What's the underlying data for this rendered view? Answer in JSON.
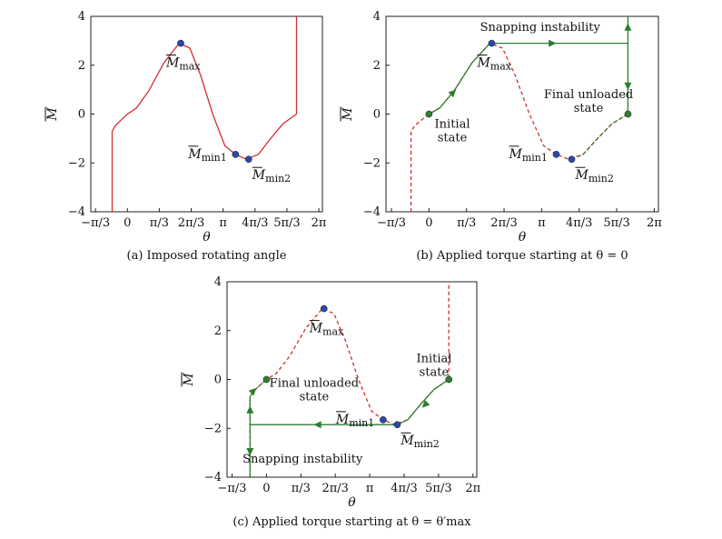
{
  "chart_data": [
    {
      "id": "a",
      "type": "line",
      "caption": "(a) Imposed rotating angle",
      "xlabel": "θ",
      "ylabel": "M",
      "xlim": [
        -1.2,
        6.4
      ],
      "ylim": [
        -4,
        4
      ],
      "xticks": [
        {
          "value": -1.0472,
          "label": "−π/3"
        },
        {
          "value": 0,
          "label": "0"
        },
        {
          "value": 1.0472,
          "label": "π/3"
        },
        {
          "value": 2.0944,
          "label": "2π/3"
        },
        {
          "value": 3.1416,
          "label": "π"
        },
        {
          "value": 4.1888,
          "label": "4π/3"
        },
        {
          "value": 5.236,
          "label": "5π/3"
        },
        {
          "value": 6.2832,
          "label": "2π"
        }
      ],
      "yticks": [
        {
          "value": -4,
          "label": "−4"
        },
        {
          "value": -2,
          "label": "−2"
        },
        {
          "value": 0,
          "label": "0"
        },
        {
          "value": 2,
          "label": "2"
        },
        {
          "value": 4,
          "label": "4"
        }
      ],
      "series": [
        {
          "style": "solid-red",
          "x": [
            -0.5,
            -0.5,
            -0.38,
            -0.15,
            0,
            0.3,
            0.7,
            1.2,
            1.7,
            2.05,
            2.4,
            2.8,
            3.2,
            3.55,
            3.9,
            4.3,
            4.7,
            5.1,
            5.55,
            5.55,
            5.55
          ],
          "y": [
            -4,
            -0.7,
            -0.45,
            -0.18,
            0,
            0.25,
            0.95,
            2.1,
            2.9,
            2.7,
            1.6,
            0.0,
            -1.3,
            -1.65,
            -1.85,
            -1.65,
            -1.0,
            -0.4,
            0,
            2.5,
            4
          ]
        }
      ],
      "points": [
        {
          "x": 1.75,
          "y": 2.9,
          "color": "#2b48a8",
          "label": "M",
          "sub": "max",
          "label_anchor": "below"
        },
        {
          "x": 3.55,
          "y": -1.65,
          "color": "#2b48a8",
          "label": "M",
          "sub": "min1",
          "label_anchor": "left"
        },
        {
          "x": 3.98,
          "y": -1.85,
          "color": "#2b48a8",
          "label": "M",
          "sub": "min2",
          "label_anchor": "below-right"
        }
      ],
      "arrows": [],
      "texts": []
    },
    {
      "id": "b",
      "type": "line",
      "caption": "(b) Applied torque starting at θ = 0",
      "xlabel": "θ",
      "ylabel": "M",
      "xlim": [
        -1.2,
        6.4
      ],
      "ylim": [
        -4,
        4
      ],
      "xticks": [
        {
          "value": -1.0472,
          "label": "−π/3"
        },
        {
          "value": 0,
          "label": "0"
        },
        {
          "value": 1.0472,
          "label": "π/3"
        },
        {
          "value": 2.0944,
          "label": "2π/3"
        },
        {
          "value": 3.1416,
          "label": "π"
        },
        {
          "value": 4.1888,
          "label": "4π/3"
        },
        {
          "value": 5.236,
          "label": "5π/3"
        },
        {
          "value": 6.2832,
          "label": "2π"
        }
      ],
      "yticks": [
        {
          "value": -4,
          "label": "−4"
        },
        {
          "value": -2,
          "label": "−2"
        },
        {
          "value": 0,
          "label": "0"
        },
        {
          "value": 2,
          "label": "2"
        },
        {
          "value": 4,
          "label": "4"
        }
      ],
      "series": [
        {
          "style": "dashed-red",
          "x": [
            -0.5,
            -0.5,
            -0.38,
            -0.15,
            0,
            0.3,
            0.7,
            1.2,
            1.7,
            2.05,
            2.4,
            2.8,
            3.2,
            3.55,
            3.9,
            4.3,
            4.7,
            5.1,
            5.55
          ],
          "y": [
            -4,
            -0.7,
            -0.45,
            -0.18,
            0,
            0.25,
            0.95,
            2.1,
            2.9,
            2.7,
            1.6,
            0.0,
            -1.3,
            -1.65,
            -1.85,
            -1.65,
            -1.0,
            -0.4,
            0
          ]
        },
        {
          "style": "solid-green",
          "x": [
            0,
            0.3,
            0.7,
            1.2,
            1.7
          ],
          "y": [
            0,
            0.25,
            0.95,
            2.1,
            2.9
          ]
        },
        {
          "style": "solid-green",
          "x": [
            1.7,
            5.55
          ],
          "y": [
            2.9,
            2.9
          ]
        },
        {
          "style": "solid-green",
          "x": [
            5.55,
            5.55
          ],
          "y": [
            4,
            0
          ]
        },
        {
          "style": "dashed-green",
          "x": [
            3.98,
            4.3,
            4.7,
            5.1,
            5.55
          ],
          "y": [
            -1.85,
            -1.65,
            -1.0,
            -0.4,
            0
          ]
        }
      ],
      "points": [
        {
          "x": 0,
          "y": 0,
          "color": "#2e7d32"
        },
        {
          "x": 1.75,
          "y": 2.9,
          "color": "#2b48a8",
          "label": "M",
          "sub": "max",
          "label_anchor": "below"
        },
        {
          "x": 3.55,
          "y": -1.65,
          "color": "#2b48a8",
          "label": "M",
          "sub": "min1",
          "label_anchor": "left"
        },
        {
          "x": 3.98,
          "y": -1.85,
          "color": "#2b48a8",
          "label": "M",
          "sub": "min2",
          "label_anchor": "below-right"
        },
        {
          "x": 5.55,
          "y": 0,
          "color": "#2e7d32"
        }
      ],
      "arrows": [
        {
          "x": 0.65,
          "y": 0.85,
          "dir": "up-right"
        },
        {
          "x": 3.4,
          "y": 2.9,
          "dir": "right"
        },
        {
          "x": 5.55,
          "y": 3.5,
          "dir": "up"
        },
        {
          "x": 5.55,
          "y": 1.2,
          "dir": "down"
        }
      ],
      "texts": [
        {
          "x": 3.1,
          "y": 3.4,
          "lines": [
            "Snapping instability"
          ]
        },
        {
          "x": 0.65,
          "y": -0.55,
          "lines": [
            "Initial",
            "state"
          ]
        },
        {
          "x": 4.45,
          "y": 0.65,
          "lines": [
            "Final unloaded",
            "state"
          ]
        }
      ]
    },
    {
      "id": "c",
      "type": "line",
      "caption": "(c) Applied torque starting at θ = θ′max",
      "xlabel": "θ",
      "ylabel": "M",
      "xlim": [
        -1.2,
        6.4
      ],
      "ylim": [
        -4,
        4
      ],
      "xticks": [
        {
          "value": -1.0472,
          "label": "−π/3"
        },
        {
          "value": 0,
          "label": "0"
        },
        {
          "value": 1.0472,
          "label": "π/3"
        },
        {
          "value": 2.0944,
          "label": "2π/3"
        },
        {
          "value": 3.1416,
          "label": "π"
        },
        {
          "value": 4.1888,
          "label": "4π/3"
        },
        {
          "value": 5.236,
          "label": "5π/3"
        },
        {
          "value": 6.2832,
          "label": "2π"
        }
      ],
      "yticks": [
        {
          "value": -4,
          "label": "−4"
        },
        {
          "value": -2,
          "label": "−2"
        },
        {
          "value": 0,
          "label": "0"
        },
        {
          "value": 2,
          "label": "2"
        },
        {
          "value": 4,
          "label": "4"
        }
      ],
      "series": [
        {
          "style": "dashed-red",
          "x": [
            -0.5,
            -0.5,
            -0.38,
            -0.15,
            0,
            0.3,
            0.7,
            1.2,
            1.7,
            2.05,
            2.4,
            2.8,
            3.2,
            3.55,
            3.9,
            4.3,
            4.7,
            5.1,
            5.55,
            5.55,
            5.55
          ],
          "y": [
            -4,
            -0.7,
            -0.45,
            -0.18,
            0,
            0.25,
            0.95,
            2.1,
            2.9,
            2.7,
            1.6,
            0.0,
            -1.3,
            -1.65,
            -1.85,
            -1.65,
            -1.0,
            -0.4,
            0,
            2.5,
            4
          ]
        },
        {
          "style": "solid-green",
          "x": [
            5.55,
            5.1,
            4.7,
            4.3,
            3.98
          ],
          "y": [
            0,
            -0.4,
            -1.0,
            -1.65,
            -1.85
          ]
        },
        {
          "style": "solid-green",
          "x": [
            3.98,
            -0.5
          ],
          "y": [
            -1.85,
            -1.85
          ]
        },
        {
          "style": "solid-green",
          "x": [
            -0.5,
            -0.5
          ],
          "y": [
            -4,
            -0.7
          ]
        },
        {
          "style": "dashed-green",
          "x": [
            -0.5,
            -0.38,
            -0.15,
            0
          ],
          "y": [
            -0.7,
            -0.45,
            -0.18,
            0
          ]
        }
      ],
      "points": [
        {
          "x": 0,
          "y": 0,
          "color": "#2e7d32"
        },
        {
          "x": 1.75,
          "y": 2.9,
          "color": "#2b48a8",
          "label": "M",
          "sub": "max",
          "label_anchor": "below"
        },
        {
          "x": 3.55,
          "y": -1.65,
          "color": "#2b48a8",
          "label": "M",
          "sub": "min1",
          "label_anchor": "left"
        },
        {
          "x": 3.98,
          "y": -1.85,
          "color": "#2b48a8",
          "label": "M",
          "sub": "min2",
          "label_anchor": "below-right"
        },
        {
          "x": 5.55,
          "y": 0,
          "color": "#2e7d32"
        }
      ],
      "arrows": [
        {
          "x": 4.85,
          "y": -1.0,
          "dir": "down-left"
        },
        {
          "x": 1.6,
          "y": -1.85,
          "dir": "left"
        },
        {
          "x": -0.5,
          "y": -1.3,
          "dir": "up"
        },
        {
          "x": -0.5,
          "y": -2.9,
          "dir": "down"
        },
        {
          "x": -0.42,
          "y": -0.5,
          "dir": "up-right"
        }
      ],
      "texts": [
        {
          "x": 1.1,
          "y": -3.4,
          "lines": [
            "Snapping instability"
          ]
        },
        {
          "x": 1.45,
          "y": -0.3,
          "lines": [
            "Final unloaded",
            "state"
          ]
        },
        {
          "x": 5.1,
          "y": 0.7,
          "lines": [
            "Initial",
            "state"
          ]
        }
      ]
    }
  ]
}
